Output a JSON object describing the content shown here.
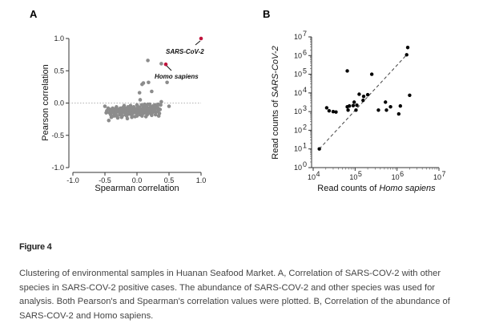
{
  "figure": {
    "title": "Figure 4",
    "caption": "Clustering of environmental samples in Huanan Seafood Market. A, Correlation of SARS-COV-2 with other species in SARS-COV-2 positive cases. The abundance of SARS-COV-2 and other species was used for analysis. Both Pearson's and Spearman's correlation values were plotted. B, Correlation of the abundance of SARS-COV-2 and Homo sapiens."
  },
  "chart_data": [
    {
      "panel": "A",
      "type": "scatter",
      "title": "",
      "xlabel": "Spearman correlation",
      "ylabel": "Pearson correlation",
      "xlim": [
        -1.0,
        1.0
      ],
      "ylim": [
        -1.0,
        1.0
      ],
      "xticks": [
        "-1.0",
        "-0.5",
        "0.0",
        "0.5",
        "1.0"
      ],
      "yticks": [
        "-1.0",
        "-0.5",
        "0.0",
        "0.5",
        "1.0"
      ],
      "reference_line": {
        "y": 0.0,
        "style": "dotted"
      },
      "colors": {
        "default": "#8c8c8c",
        "highlight": "#c0143c"
      },
      "highlighted": [
        {
          "label": "SARS-CoV-2",
          "x": 1.0,
          "y": 1.0
        },
        {
          "label": "Homo sapiens",
          "x": 0.45,
          "y": 0.6
        }
      ],
      "points": [
        [
          0.17,
          0.66
        ],
        [
          0.38,
          0.61
        ],
        [
          0.47,
          0.32
        ],
        [
          0.08,
          0.29
        ],
        [
          0.1,
          0.31
        ],
        [
          0.18,
          0.32
        ],
        [
          0.04,
          0.16
        ],
        [
          0.23,
          0.18
        ],
        [
          0.05,
          0.05
        ],
        [
          0.38,
          0.02
        ],
        [
          0.5,
          -0.05
        ],
        [
          -0.5,
          -0.05
        ],
        [
          -0.47,
          -0.12
        ],
        [
          -0.44,
          -0.27
        ],
        [
          -0.42,
          -0.1
        ],
        [
          -0.4,
          -0.15
        ],
        [
          -0.38,
          -0.08
        ],
        [
          -0.36,
          -0.2
        ],
        [
          -0.35,
          -0.12
        ],
        [
          -0.33,
          -0.17
        ],
        [
          -0.32,
          -0.06
        ],
        [
          -0.3,
          -0.23
        ],
        [
          -0.29,
          -0.1
        ],
        [
          -0.28,
          -0.14
        ],
        [
          -0.27,
          -0.18
        ],
        [
          -0.26,
          -0.08
        ],
        [
          -0.25,
          -0.12
        ],
        [
          -0.24,
          -0.16
        ],
        [
          -0.23,
          -0.2
        ],
        [
          -0.22,
          -0.07
        ],
        [
          -0.21,
          -0.13
        ],
        [
          -0.2,
          -0.1
        ],
        [
          -0.19,
          -0.15
        ],
        [
          -0.18,
          -0.18
        ],
        [
          -0.17,
          -0.09
        ],
        [
          -0.16,
          -0.12
        ],
        [
          -0.15,
          -0.24
        ],
        [
          -0.14,
          -0.06
        ],
        [
          -0.13,
          -0.14
        ],
        [
          -0.12,
          -0.1
        ],
        [
          -0.11,
          -0.17
        ],
        [
          -0.1,
          -0.12
        ],
        [
          -0.09,
          -0.08
        ],
        [
          -0.08,
          -0.19
        ],
        [
          -0.07,
          -0.11
        ],
        [
          -0.06,
          -0.15
        ],
        [
          -0.05,
          -0.06
        ],
        [
          -0.04,
          -0.13
        ],
        [
          -0.03,
          -0.21
        ],
        [
          -0.02,
          -0.09
        ],
        [
          -0.01,
          -0.12
        ],
        [
          0.0,
          -0.16
        ],
        [
          0.01,
          -0.05
        ],
        [
          0.02,
          -0.1
        ],
        [
          0.03,
          -0.14
        ],
        [
          0.04,
          -0.07
        ],
        [
          0.05,
          -0.18
        ],
        [
          0.06,
          -0.11
        ],
        [
          0.07,
          -0.03
        ],
        [
          0.08,
          -0.13
        ],
        [
          0.09,
          -0.08
        ],
        [
          0.1,
          -0.16
        ],
        [
          0.11,
          -0.04
        ],
        [
          0.12,
          -0.12
        ],
        [
          0.13,
          -0.09
        ],
        [
          0.14,
          -0.21
        ],
        [
          0.15,
          -0.06
        ],
        [
          0.16,
          -0.11
        ],
        [
          0.17,
          -0.02
        ],
        [
          0.18,
          -0.14
        ],
        [
          0.19,
          -0.08
        ],
        [
          0.2,
          -0.1
        ],
        [
          0.21,
          -0.05
        ],
        [
          0.22,
          -0.13
        ],
        [
          0.23,
          -0.19
        ],
        [
          0.24,
          -0.07
        ],
        [
          0.25,
          -0.11
        ],
        [
          0.26,
          -0.04
        ],
        [
          0.28,
          -0.09
        ],
        [
          0.3,
          -0.14
        ],
        [
          0.32,
          -0.06
        ],
        [
          0.34,
          -0.2
        ],
        [
          0.36,
          -0.1
        ],
        [
          0.37,
          -0.03
        ],
        [
          0.35,
          -0.16
        ],
        [
          0.33,
          -0.12
        ],
        [
          0.31,
          -0.08
        ],
        [
          0.29,
          -0.18
        ],
        [
          -0.45,
          -0.08
        ],
        [
          -0.41,
          -0.18
        ],
        [
          -0.37,
          -0.14
        ],
        [
          -0.34,
          -0.09
        ],
        [
          -0.31,
          -0.13
        ],
        [
          -0.27,
          -0.11
        ],
        [
          -0.23,
          -0.09
        ],
        [
          -0.19,
          -0.12
        ],
        [
          -0.15,
          -0.09
        ],
        [
          -0.11,
          -0.14
        ],
        [
          -0.07,
          -0.16
        ],
        [
          -0.03,
          -0.1
        ],
        [
          0.01,
          -0.13
        ],
        [
          0.05,
          -0.09
        ],
        [
          0.09,
          -0.12
        ],
        [
          0.13,
          -0.15
        ],
        [
          0.17,
          -0.1
        ],
        [
          0.21,
          -0.16
        ],
        [
          0.25,
          -0.08
        ],
        [
          0.27,
          -0.13
        ],
        [
          -0.43,
          -0.15
        ],
        [
          -0.39,
          -0.11
        ],
        [
          -0.35,
          -0.17
        ],
        [
          -0.3,
          -0.1
        ],
        [
          -0.26,
          -0.15
        ],
        [
          -0.22,
          -0.12
        ],
        [
          -0.18,
          -0.08
        ],
        [
          -0.14,
          -0.17
        ],
        [
          -0.1,
          -0.08
        ],
        [
          -0.06,
          -0.12
        ],
        [
          -0.02,
          -0.15
        ],
        [
          0.02,
          -0.07
        ],
        [
          0.06,
          -0.14
        ],
        [
          0.1,
          -0.1
        ],
        [
          0.14,
          -0.07
        ],
        [
          0.18,
          -0.11
        ],
        [
          0.22,
          -0.09
        ],
        [
          0.26,
          -0.12
        ],
        [
          0.3,
          -0.05
        ],
        [
          0.34,
          -0.09
        ],
        [
          -0.48,
          -0.15
        ],
        [
          -0.4,
          -0.22
        ],
        [
          -0.32,
          -0.2
        ],
        [
          -0.24,
          -0.22
        ],
        [
          -0.16,
          -0.2
        ],
        [
          -0.08,
          -0.22
        ],
        [
          0.0,
          -0.2
        ],
        [
          0.08,
          -0.2
        ],
        [
          0.16,
          -0.18
        ],
        [
          0.24,
          -0.15
        ],
        [
          -0.2,
          -0.04
        ],
        [
          -0.1,
          -0.04
        ],
        [
          0.0,
          -0.03
        ],
        [
          0.12,
          -0.02
        ],
        [
          0.2,
          -0.02
        ],
        [
          0.28,
          -0.03
        ],
        [
          0.33,
          -0.02
        ]
      ]
    },
    {
      "panel": "B",
      "type": "scatter",
      "title": "",
      "xlabel_prefix": "Read counts of ",
      "xlabel_italic": "Homo sapiens",
      "ylabel_prefix": "Read counts of ",
      "ylabel_italic": "SARS-CoV-2",
      "xscale": "log",
      "yscale": "log",
      "xlim": [
        10000,
        10000000
      ],
      "ylim": [
        1,
        10000000
      ],
      "xticks": [
        {
          "base": "10",
          "exp": "4"
        },
        {
          "base": "10",
          "exp": "5"
        },
        {
          "base": "10",
          "exp": "6"
        },
        {
          "base": "10",
          "exp": "7"
        }
      ],
      "yticks": [
        {
          "base": "10",
          "exp": "0"
        },
        {
          "base": "10",
          "exp": "1"
        },
        {
          "base": "10",
          "exp": "2"
        },
        {
          "base": "10",
          "exp": "3"
        },
        {
          "base": "10",
          "exp": "4"
        },
        {
          "base": "10",
          "exp": "5"
        },
        {
          "base": "10",
          "exp": "6"
        },
        {
          "base": "10",
          "exp": "7"
        }
      ],
      "fit_line": {
        "from": [
          14000,
          10
        ],
        "to": [
          1700000,
          1100000
        ],
        "style": "dashed"
      },
      "points": [
        [
          14000,
          10
        ],
        [
          21000,
          1600
        ],
        [
          24000,
          1100
        ],
        [
          30000,
          1000
        ],
        [
          35000,
          950
        ],
        [
          65000,
          150000
        ],
        [
          65000,
          1800
        ],
        [
          68000,
          1200
        ],
        [
          73000,
          2000
        ],
        [
          90000,
          2100
        ],
        [
          95000,
          3200
        ],
        [
          105000,
          1200
        ],
        [
          110000,
          2200
        ],
        [
          125000,
          8500
        ],
        [
          155000,
          4000
        ],
        [
          160000,
          6500
        ],
        [
          200000,
          8000
        ],
        [
          250000,
          100000
        ],
        [
          360000,
          1200
        ],
        [
          530000,
          3200
        ],
        [
          560000,
          1200
        ],
        [
          700000,
          1800
        ],
        [
          1100000,
          750
        ],
        [
          1200000,
          2000
        ],
        [
          1700000,
          1100000
        ],
        [
          1800000,
          2700000
        ],
        [
          2000000,
          7500
        ]
      ]
    }
  ],
  "panels": {
    "A": {
      "letter": "A",
      "annotations": {
        "sars": "SARS-CoV-2",
        "homo": "Homo sapiens"
      }
    },
    "B": {
      "letter": "B"
    }
  }
}
